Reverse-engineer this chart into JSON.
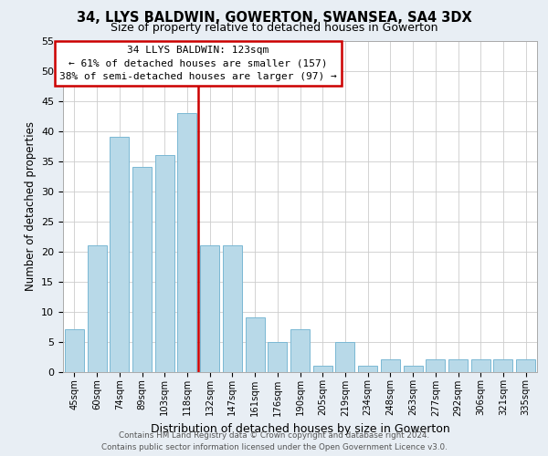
{
  "title": "34, LLYS BALDWIN, GOWERTON, SWANSEA, SA4 3DX",
  "subtitle": "Size of property relative to detached houses in Gowerton",
  "xlabel": "Distribution of detached houses by size in Gowerton",
  "ylabel": "Number of detached properties",
  "categories": [
    "45sqm",
    "60sqm",
    "74sqm",
    "89sqm",
    "103sqm",
    "118sqm",
    "132sqm",
    "147sqm",
    "161sqm",
    "176sqm",
    "190sqm",
    "205sqm",
    "219sqm",
    "234sqm",
    "248sqm",
    "263sqm",
    "277sqm",
    "292sqm",
    "306sqm",
    "321sqm",
    "335sqm"
  ],
  "values": [
    7,
    21,
    39,
    34,
    36,
    43,
    21,
    21,
    9,
    5,
    7,
    1,
    5,
    1,
    2,
    1,
    2,
    2,
    2,
    2,
    2
  ],
  "bar_color": "#b8d9e8",
  "bar_edge_color": "#7bb8d4",
  "vline_x": 5.5,
  "vline_color": "#cc0000",
  "ylim": [
    0,
    55
  ],
  "yticks": [
    0,
    5,
    10,
    15,
    20,
    25,
    30,
    35,
    40,
    45,
    50,
    55
  ],
  "annotation_line1": "34 LLYS BALDWIN: 123sqm",
  "annotation_line2": "← 61% of detached houses are smaller (157)",
  "annotation_line3": "38% of semi-detached houses are larger (97) →",
  "footer_line1": "Contains HM Land Registry data © Crown copyright and database right 2024.",
  "footer_line2": "Contains public sector information licensed under the Open Government Licence v3.0.",
  "background_color": "#e8eef4",
  "plot_bg_color": "#ffffff"
}
